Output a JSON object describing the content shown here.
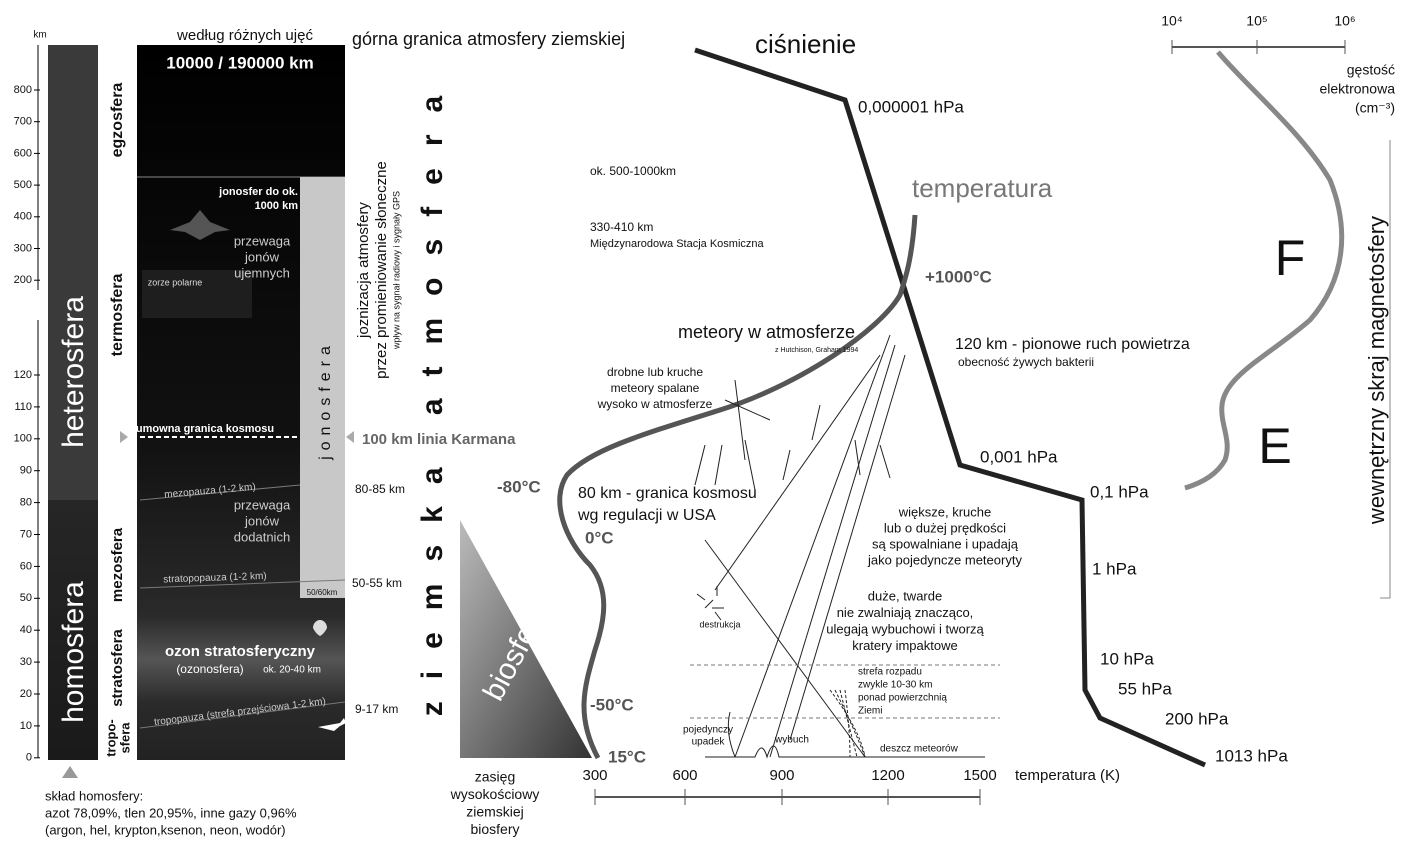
{
  "axis": {
    "unit": "km",
    "ticks": [
      "800",
      "700",
      "600",
      "500",
      "400",
      "300",
      "200",
      "120",
      "110",
      "100",
      "90",
      "80",
      "70",
      "60",
      "50",
      "40",
      "30",
      "20",
      "10",
      "0"
    ]
  },
  "layers": {
    "heterosfera": "heterosfera",
    "homosfera": "homosfera",
    "egzosfera": "egzosfera",
    "termosfera": "termosfera",
    "mezosfera": "mezosfera",
    "stratosfera": "stratosfera",
    "troposfera": [
      "tropo-",
      "sfera"
    ]
  },
  "header": {
    "left": "według różnych ujęć",
    "right": "górna granica  atmosfery ziemskiej"
  },
  "panel": {
    "top_limit": "10000 / 190000 km",
    "ionosphere_limit": [
      "jonosfer do ok.",
      "1000 km"
    ],
    "negative_ions": [
      "przewaga",
      "jonów",
      "ujemnych"
    ],
    "aurora": "zorze polarne",
    "space_boundary": "umowna granica kosmosu",
    "mesopause": "mezopauza (1-2 km)",
    "positive_ions": [
      "przewaga",
      "jonów",
      "dodatnich"
    ],
    "stratopause": "stratopopauza (1-2 km)",
    "ionosphere_base": "50/60km",
    "ozone": "ozon stratosferyczny",
    "ozonosphere": "(ozonosfera)",
    "ozone_range": "ok. 20-40 km",
    "tropopause": "tropopauza (strefa przejściowa 1-2 km)",
    "ionosphere": "jonosfera"
  },
  "ionization": [
    "joznizacja atmosfery",
    "przez promieniowanie słoneczne",
    "wpływ na sygnał radiowy i sygnały GPS"
  ],
  "altitudes": {
    "karman": "100 km linia Karmana",
    "mesopause": "80-85 km",
    "stratopause": "50-55 km",
    "tropopause": "9-17 km"
  },
  "atmosphere": "ziemska atmosfera",
  "biosphere": {
    "label": "biosfera",
    "range": [
      "zasięg",
      "wysokościowy",
      "ziemskiej",
      "biosfery"
    ]
  },
  "homosphere_composition": [
    "skład homosfery:",
    "azot 78,09%, tlen 20,95%, inne gazy 0,96%",
    "(argon, hel, krypton,ksenon, neon, wodór)"
  ],
  "temperature_axis": {
    "ticks": [
      "300",
      "600",
      "900",
      "1200",
      "1500"
    ],
    "label": "temperatura (K)"
  },
  "pressure": {
    "label": "ciśnienie",
    "levels": [
      "0,000001 hPa",
      "0,001 hPa",
      "0,1 hPa",
      "1 hPa",
      "10 hPa",
      "55 hPa",
      "200 hPa",
      "1013 hPa"
    ]
  },
  "temperature": {
    "label": "temperatura",
    "levels": [
      "+1000°C",
      "-80°C",
      "0°C",
      "-50°C",
      "15°C"
    ]
  },
  "electron_density": {
    "ticks": [
      "10⁴",
      "10⁵",
      "10⁶"
    ],
    "label": [
      "gęstość",
      "elektronowa",
      "(cm⁻³)"
    ],
    "layers": [
      "F",
      "E"
    ]
  },
  "magnetosphere": "wewnętrzny skraj magnetosfery",
  "annotations": {
    "high_orbit": "ok. 500-1000km",
    "iss": [
      "330-410 km",
      "Międzynarodowa Stacja Kosmiczna"
    ],
    "meteors": "meteory  w  atmosferze",
    "source": "z Hutchison, Graham 1994",
    "small_meteors": [
      "drobne lub kruche",
      "meteory spalane",
      "wysoko w atmosferze"
    ],
    "bacteria": [
      "120 km - pionowe ruch powietrza",
      "obecność żywych bakterii"
    ],
    "us_boundary": [
      "80 km - granica kosmosu",
      "wg regulacji w USA"
    ],
    "large_fragile": [
      "większe, kruche",
      "lub o dużej prędkości",
      "są spowalniane i upadają",
      "jako pojedyncze meteoryty"
    ],
    "large_hard": [
      "duże, twarde",
      "nie zwalniają znacząco,",
      "ulegają wybuchowi i tworzą",
      "kratery impaktowe"
    ],
    "destruction": "destrukcja",
    "breakup_zone": [
      "strefa rozpadu",
      "zwykle 10-30 km",
      "ponad powierzchnią",
      "Ziemi"
    ],
    "single_fall": [
      "pojedynczy",
      "upadek"
    ],
    "explosion": "wybuch",
    "meteor_shower": "deszcz meteorów"
  }
}
